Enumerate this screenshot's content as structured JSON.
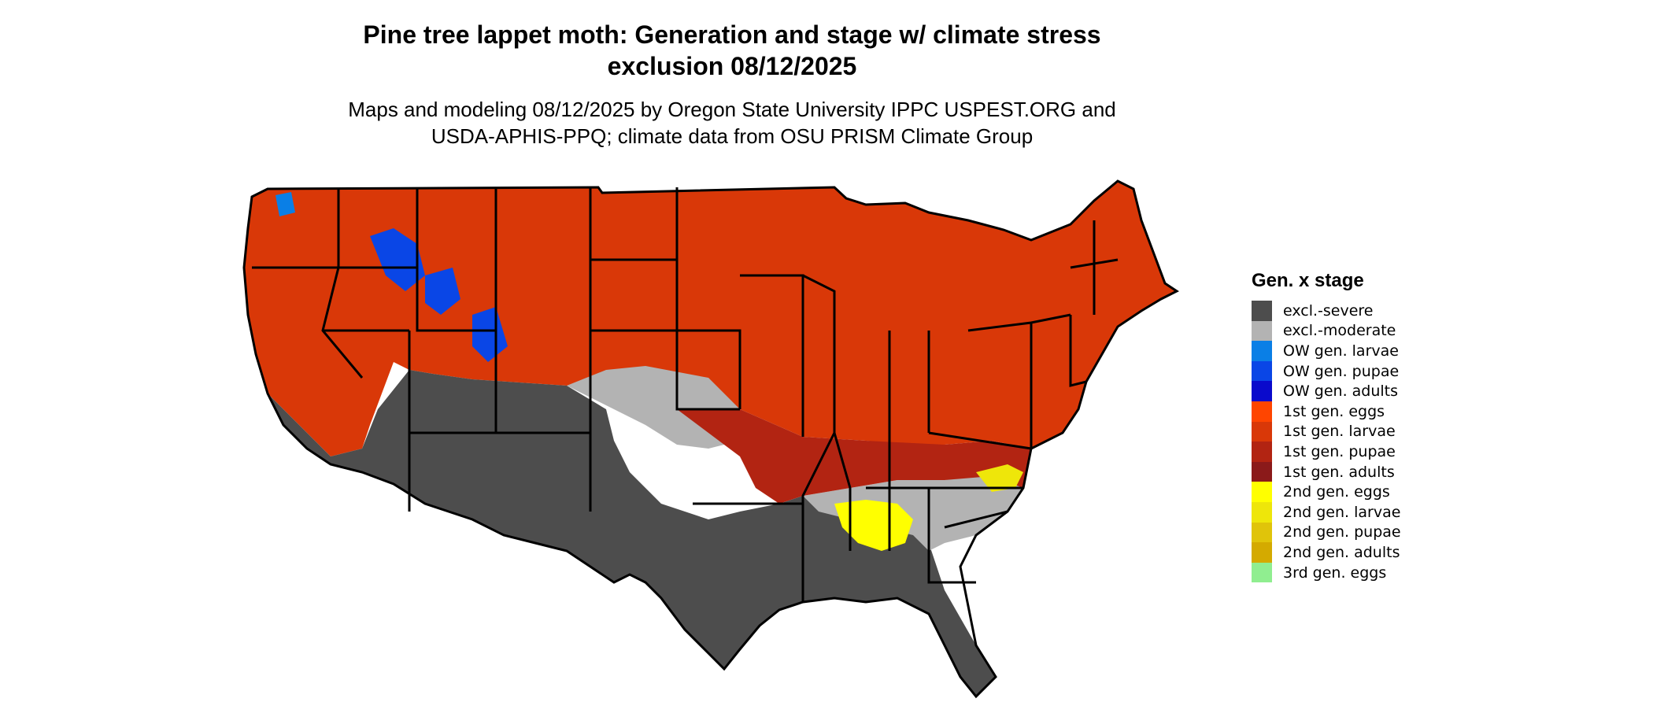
{
  "title_line1": "Pine tree lappet moth: Generation and stage w/ climate stress",
  "title_line2": "exclusion 08/12/2025",
  "subtitle_line1": "Maps and modeling 08/12/2025 by Oregon State University IPPC USPEST.ORG and",
  "subtitle_line2": "USDA-APHIS-PPQ; climate data from OSU PRISM Climate Group",
  "legend": {
    "title": "Gen. x stage",
    "items": [
      {
        "label": "excl.-severe",
        "color": "#4d4d4d"
      },
      {
        "label": "excl.-moderate",
        "color": "#b3b3b3"
      },
      {
        "label": "OW gen. larvae",
        "color": "#0a7fe6"
      },
      {
        "label": "OW gen. pupae",
        "color": "#0a46e6"
      },
      {
        "label": "OW gen. adults",
        "color": "#0a0acc"
      },
      {
        "label": "1st gen. eggs",
        "color": "#ff4500"
      },
      {
        "label": "1st gen. larvae",
        "color": "#d93808"
      },
      {
        "label": "1st gen. pupae",
        "color": "#b22412"
      },
      {
        "label": "1st gen. adults",
        "color": "#8b1a1a"
      },
      {
        "label": "2nd gen. eggs",
        "color": "#ffff00"
      },
      {
        "label": "2nd gen. larvae",
        "color": "#eee60a"
      },
      {
        "label": "2nd gen. pupae",
        "color": "#e0c40a"
      },
      {
        "label": "2nd gen. adults",
        "color": "#d4aa00"
      },
      {
        "label": "3rd gen. eggs",
        "color": "#90ee90"
      }
    ]
  }
}
